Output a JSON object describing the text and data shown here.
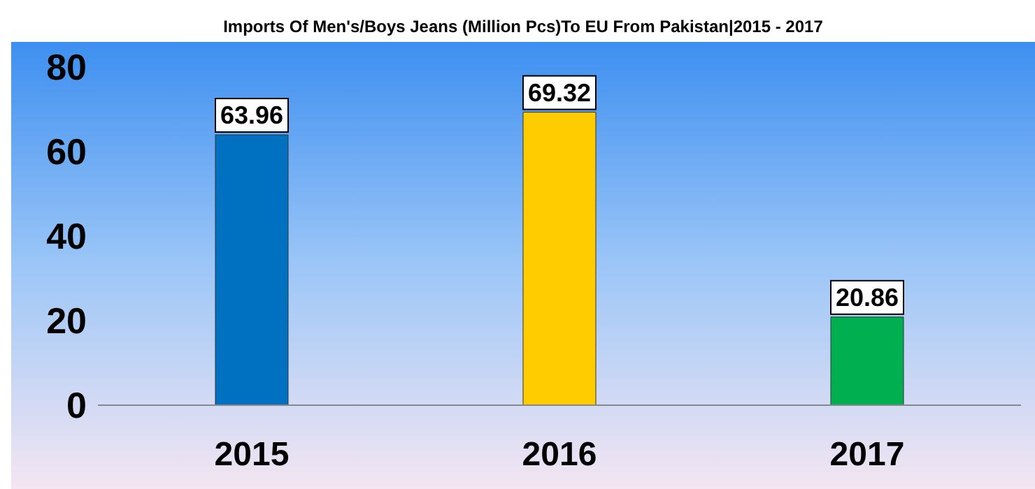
{
  "chart_data": {
    "type": "bar",
    "title": "Imports Of Men's/Boys Jeans (Million Pcs)To EU From Pakistan|2015 - 2017",
    "categories": [
      "2015",
      "2016",
      "2017"
    ],
    "values": [
      63.96,
      69.32,
      20.86
    ],
    "colors": [
      "#0070c0",
      "#ffcc00",
      "#00b050"
    ],
    "ylim": [
      0,
      80
    ],
    "yticks": [
      0,
      20,
      40,
      60,
      80
    ],
    "grid": false,
    "data_labels": true
  }
}
